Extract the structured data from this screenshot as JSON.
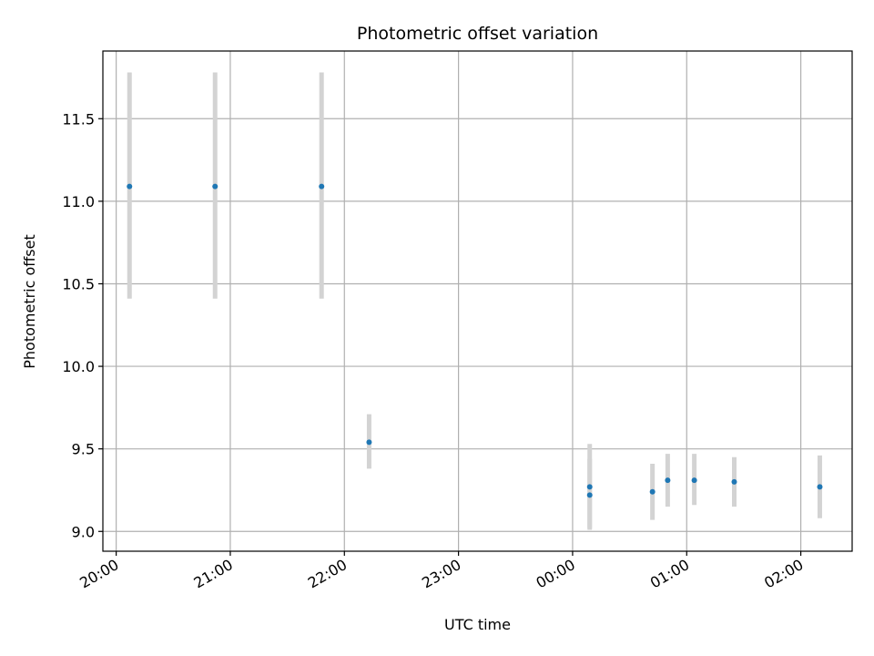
{
  "chart_data": {
    "type": "scatter",
    "title": "Photometric offset variation",
    "xlabel": "UTC time",
    "ylabel": "Photometric offset",
    "grid": true,
    "xlim": [
      "19:53",
      "02:27"
    ],
    "ylim": [
      8.88,
      11.91
    ],
    "xticks": [
      "20:00",
      "21:00",
      "22:00",
      "23:00",
      "00:00",
      "01:00",
      "02:00"
    ],
    "yticks": [
      "9.0",
      "9.5",
      "10.0",
      "10.5",
      "11.0",
      "11.5"
    ],
    "points": [
      {
        "time": "20:07",
        "value": 11.09,
        "low": 10.41,
        "high": 11.78
      },
      {
        "time": "20:52",
        "value": 11.09,
        "low": 10.41,
        "high": 11.78
      },
      {
        "time": "21:48",
        "value": 11.09,
        "low": 10.41,
        "high": 11.78
      },
      {
        "time": "22:13",
        "value": 9.54,
        "low": 9.38,
        "high": 9.71
      },
      {
        "time": "00:09",
        "value": 9.27,
        "low": 9.02,
        "high": 9.53
      },
      {
        "time": "00:09",
        "value": 9.22,
        "low": 9.01,
        "high": 9.44
      },
      {
        "time": "00:42",
        "value": 9.24,
        "low": 9.07,
        "high": 9.41
      },
      {
        "time": "00:50",
        "value": 9.31,
        "low": 9.15,
        "high": 9.47
      },
      {
        "time": "01:04",
        "value": 9.31,
        "low": 9.16,
        "high": 9.47
      },
      {
        "time": "01:25",
        "value": 9.3,
        "low": 9.15,
        "high": 9.45
      },
      {
        "time": "02:10",
        "value": 9.27,
        "low": 9.08,
        "high": 9.46
      }
    ],
    "point_color": "#1f77b4",
    "errorbar_color": "#d3d3d3",
    "grid_color": "#b0b0b0"
  }
}
